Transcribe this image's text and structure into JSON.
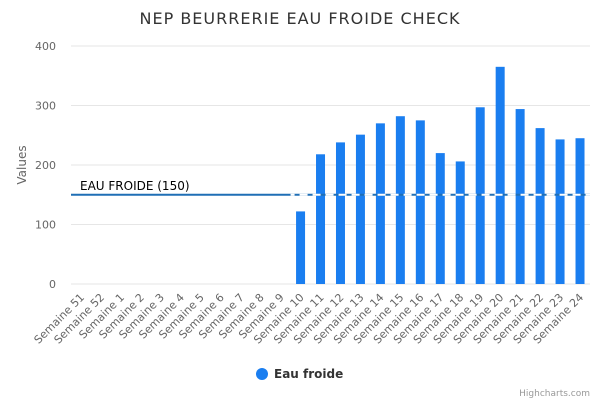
{
  "chart_data": {
    "type": "bar",
    "title": "NEP BEURRERIE EAU FROIDE CHECK",
    "ylabel": "Values",
    "ylim": [
      0,
      400
    ],
    "yticks": [
      0,
      100,
      200,
      300,
      400
    ],
    "grid": true,
    "legend_position": "bottom",
    "categories": [
      "Semaine 51",
      "Semaine 52",
      "Semaine 1",
      "Semaine 2",
      "Semaine 3",
      "Semaine 4",
      "Semaine 5",
      "Semaine 6",
      "Semaine 7",
      "Semaine 8",
      "Semaine 9",
      "Semaine 10",
      "Semaine 11",
      "Semaine 12",
      "Semaine 13",
      "Semaine 14",
      "Semaine 15",
      "Semaine 16",
      "Semaine 17",
      "Semaine 18",
      "Semaine 19",
      "Semaine 20",
      "Semaine 21",
      "Semaine 22",
      "Semaine 23",
      "Semaine 24"
    ],
    "series": [
      {
        "name": "Eau froide",
        "color": "#1a7ef0",
        "values": [
          0,
          0,
          0,
          0,
          0,
          0,
          0,
          0,
          0,
          0,
          0,
          122,
          218,
          238,
          251,
          270,
          282,
          275,
          220,
          206,
          297,
          365,
          294,
          262,
          243,
          245
        ]
      }
    ],
    "plot_line": {
      "value": 150,
      "label": "EAU FROIDE (150)",
      "color": "#1f6fb5"
    }
  },
  "credits": "Highcharts.com"
}
